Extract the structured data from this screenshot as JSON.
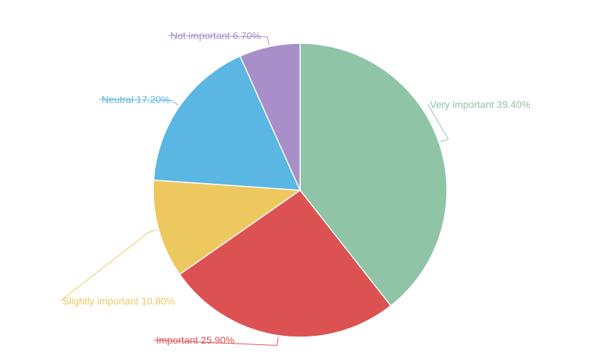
{
  "chart_data": {
    "type": "pie",
    "start_angle_deg": 0,
    "direction": "clockwise",
    "slices": [
      {
        "label": "Very important",
        "value": 39.4,
        "text": "Very important 39.40%",
        "color": "#8fc4a7"
      },
      {
        "label": "Important",
        "value": 25.9,
        "text": "Important 25.90%",
        "color": "#dc5253"
      },
      {
        "label": "Slightly important",
        "value": 10.8,
        "text": "Slightly important 10.80%",
        "color": "#edc85f"
      },
      {
        "label": "Neutral",
        "value": 17.2,
        "text": "Neutral 17.20%",
        "color": "#5ab6e2"
      },
      {
        "label": "Not important",
        "value": 6.7,
        "text": "Not important 6.70%",
        "color": "#a88fc9"
      }
    ]
  }
}
